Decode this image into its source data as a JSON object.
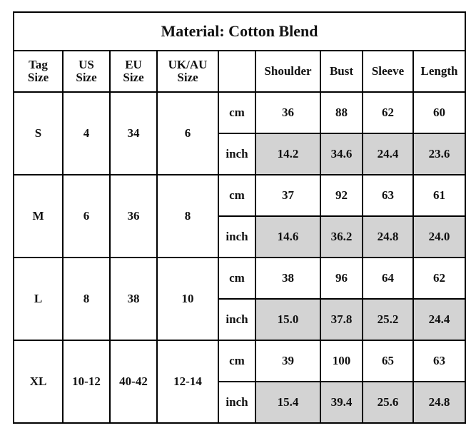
{
  "title": "Material: Cotton Blend",
  "headers": {
    "tag": [
      "Tag",
      "Size"
    ],
    "us": [
      "US",
      "Size"
    ],
    "eu": [
      "EU",
      "Size"
    ],
    "uk": [
      "UK/AU",
      "Size"
    ],
    "measurements": [
      "Shoulder",
      "Bust",
      "Sleeve",
      "Length"
    ]
  },
  "sizes": [
    {
      "tag": "S",
      "us": "4",
      "eu": "34",
      "uk": "6",
      "cm": [
        "36",
        "88",
        "62",
        "60"
      ],
      "inch": [
        "14.2",
        "34.6",
        "24.4",
        "23.6"
      ]
    },
    {
      "tag": "M",
      "us": "6",
      "eu": "36",
      "uk": "8",
      "cm": [
        "37",
        "92",
        "63",
        "61"
      ],
      "inch": [
        "14.6",
        "36.2",
        "24.8",
        "24.0"
      ]
    },
    {
      "tag": "L",
      "us": "8",
      "eu": "38",
      "uk": "10",
      "cm": [
        "38",
        "96",
        "64",
        "62"
      ],
      "inch": [
        "15.0",
        "37.8",
        "25.2",
        "24.4"
      ]
    },
    {
      "tag": "XL",
      "us": "10-12",
      "eu": "40-42",
      "uk": "12-14",
      "cm": [
        "39",
        "100",
        "65",
        "63"
      ],
      "inch": [
        "15.4",
        "39.4",
        "25.6",
        "24.8"
      ]
    }
  ],
  "unit_labels": {
    "cm": "cm",
    "inch": "inch"
  },
  "colors": {
    "grid": "#000000",
    "shaded_cell": "#d3d3d3",
    "background": "#ffffff"
  }
}
